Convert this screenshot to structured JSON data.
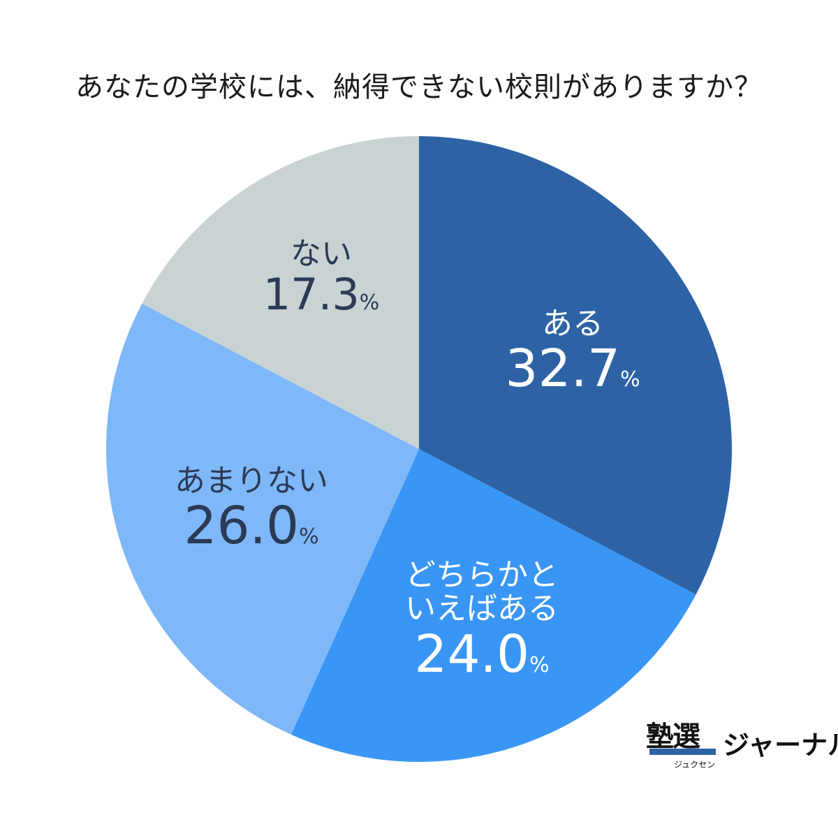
{
  "chart_data": {
    "type": "pie",
    "title": "あなたの学校には、納得できない校則がありますか？",
    "start": "top",
    "direction": "clockwise",
    "unit": "%",
    "slices": [
      {
        "label": "ある",
        "value": 32.7,
        "value_text": "32.7",
        "color": "#2d63a5",
        "text_color": "#ffffff"
      },
      {
        "label": "どちらかといえばある",
        "label_lines": [
          "どちらかと",
          "いえばある"
        ],
        "value": 24.0,
        "value_text": "24.0",
        "color": "#3a96f5",
        "text_color": "#ffffff"
      },
      {
        "label": "あまりない",
        "value": 26.0,
        "value_text": "26.0",
        "color": "#7fb8f9",
        "text_color": "#2b3a55"
      },
      {
        "label": "ない",
        "value": 17.3,
        "value_text": "17.3",
        "color": "#c9d3d4",
        "text_color": "#2b3a55"
      }
    ]
  },
  "logo": {
    "main": "塾選",
    "sub": "ジャーナル",
    "kana": "ジュクセン"
  }
}
